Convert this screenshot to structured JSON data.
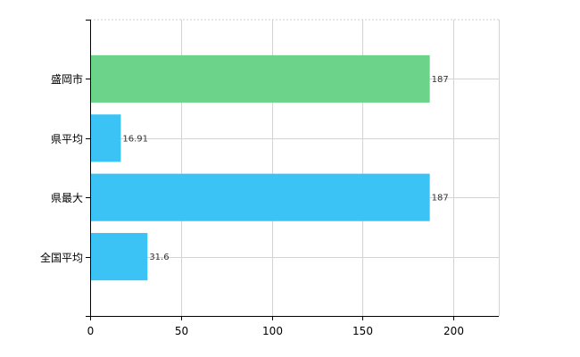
{
  "chart_data": {
    "type": "bar",
    "orientation": "horizontal",
    "categories": [
      "盛岡市",
      "県平均",
      "県最大",
      "全国平均"
    ],
    "values": [
      187,
      16.91,
      187,
      31.6
    ],
    "value_labels": [
      "187",
      "16.91",
      "187",
      "31.6"
    ],
    "bar_colors": [
      "#6cd48a",
      "#3cc3f5",
      "#3cc3f5",
      "#3cc3f5"
    ],
    "xlim": [
      0,
      225
    ],
    "x_ticks": [
      0,
      50,
      100,
      150,
      200
    ],
    "x_tick_labels": [
      "0",
      "50",
      "100",
      "150",
      "200"
    ],
    "grid": true,
    "title": "",
    "xlabel": "",
    "ylabel": ""
  }
}
